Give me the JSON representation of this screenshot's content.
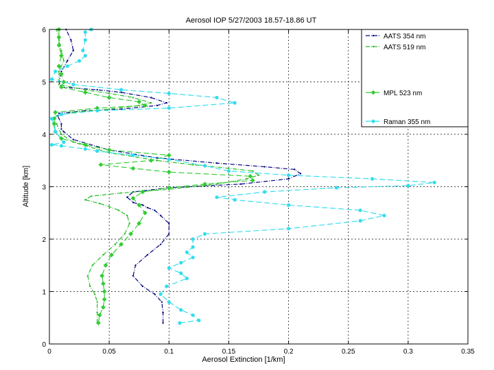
{
  "chart_data": {
    "type": "line",
    "title": "Aerosol IOP  5/27/2003 18.57-18.86  UT",
    "xlabel": "Aerosol Extinction [1/km]",
    "ylabel": "Altitude [km]",
    "xlim": [
      0,
      0.35
    ],
    "ylim": [
      0,
      6
    ],
    "xticks": [
      "0",
      "0.05",
      "0.1",
      "0.15",
      "0.2",
      "0.25",
      "0.3",
      "0.35"
    ],
    "yticks": [
      "0",
      "1",
      "2",
      "3",
      "4",
      "5",
      "6"
    ],
    "grid": true,
    "legend_position": "top-right",
    "series": [
      {
        "name": "AATS 354 nm",
        "color": "#000080",
        "style": "dashdot",
        "marker": "dot",
        "points": [
          [
            0.095,
            0.4
          ],
          [
            0.095,
            0.6
          ],
          [
            0.094,
            0.8
          ],
          [
            0.088,
            0.95
          ],
          [
            0.078,
            1.1
          ],
          [
            0.07,
            1.3
          ],
          [
            0.072,
            1.5
          ],
          [
            0.082,
            1.7
          ],
          [
            0.093,
            1.9
          ],
          [
            0.1,
            2.1
          ],
          [
            0.1,
            2.3
          ],
          [
            0.093,
            2.45
          ],
          [
            0.088,
            2.55
          ],
          [
            0.082,
            2.6
          ],
          [
            0.078,
            2.65
          ],
          [
            0.07,
            2.7
          ],
          [
            0.065,
            2.8
          ],
          [
            0.07,
            2.9
          ],
          [
            0.1,
            2.98
          ],
          [
            0.16,
            3.05
          ],
          [
            0.2,
            3.15
          ],
          [
            0.21,
            3.25
          ],
          [
            0.205,
            3.33
          ],
          [
            0.18,
            3.38
          ],
          [
            0.14,
            3.45
          ],
          [
            0.09,
            3.55
          ],
          [
            0.05,
            3.7
          ],
          [
            0.02,
            3.9
          ],
          [
            0.012,
            4.05
          ],
          [
            0.01,
            4.1
          ],
          [
            0.01,
            4.2
          ],
          [
            0.007,
            4.35
          ],
          [
            0.008,
            4.4
          ],
          [
            0.03,
            4.45
          ],
          [
            0.06,
            4.48
          ],
          [
            0.09,
            4.55
          ],
          [
            0.098,
            4.6
          ],
          [
            0.085,
            4.7
          ],
          [
            0.06,
            4.8
          ],
          [
            0.04,
            4.85
          ],
          [
            0.01,
            4.9
          ],
          [
            0.008,
            5.0
          ],
          [
            0.01,
            5.2
          ],
          [
            0.015,
            5.4
          ],
          [
            0.02,
            5.6
          ],
          [
            0.018,
            5.8
          ],
          [
            0.014,
            6.0
          ]
        ]
      },
      {
        "name": "AATS 519 nm",
        "color": "#22bb22",
        "style": "dashdot",
        "marker": "dot",
        "points": [
          [
            0.04,
            0.4
          ],
          [
            0.04,
            0.6
          ],
          [
            0.04,
            0.8
          ],
          [
            0.038,
            0.95
          ],
          [
            0.034,
            1.1
          ],
          [
            0.032,
            1.3
          ],
          [
            0.036,
            1.5
          ],
          [
            0.045,
            1.7
          ],
          [
            0.055,
            1.9
          ],
          [
            0.063,
            2.1
          ],
          [
            0.067,
            2.3
          ],
          [
            0.065,
            2.45
          ],
          [
            0.058,
            2.55
          ],
          [
            0.05,
            2.62
          ],
          [
            0.042,
            2.68
          ],
          [
            0.03,
            2.75
          ],
          [
            0.035,
            2.82
          ],
          [
            0.06,
            2.88
          ],
          [
            0.1,
            2.95
          ],
          [
            0.14,
            3.05
          ],
          [
            0.165,
            3.15
          ],
          [
            0.175,
            3.22
          ],
          [
            0.17,
            3.3
          ],
          [
            0.15,
            3.35
          ],
          [
            0.12,
            3.42
          ],
          [
            0.09,
            3.5
          ],
          [
            0.05,
            3.65
          ],
          [
            0.02,
            3.85
          ],
          [
            0.01,
            4.0
          ],
          [
            0.006,
            4.2
          ],
          [
            0.004,
            4.3
          ],
          [
            0.006,
            4.35
          ],
          [
            0.02,
            4.42
          ],
          [
            0.05,
            4.48
          ],
          [
            0.075,
            4.55
          ],
          [
            0.085,
            4.6
          ],
          [
            0.07,
            4.7
          ],
          [
            0.05,
            4.78
          ],
          [
            0.03,
            4.85
          ],
          [
            0.008,
            4.95
          ],
          [
            0.008,
            5.2
          ],
          [
            0.012,
            5.4
          ],
          [
            0.01,
            5.6
          ],
          [
            0.008,
            5.8
          ],
          [
            0.006,
            6.0
          ]
        ]
      },
      {
        "name": "MPL 523 nm",
        "color": "#33cc33",
        "style": "dashed",
        "marker": "diamond",
        "points": [
          [
            0.041,
            0.4
          ],
          [
            0.042,
            0.55
          ],
          [
            0.045,
            0.7
          ],
          [
            0.046,
            0.85
          ],
          [
            0.046,
            1.0
          ],
          [
            0.045,
            1.15
          ],
          [
            0.044,
            1.3
          ],
          [
            0.047,
            1.5
          ],
          [
            0.052,
            1.7
          ],
          [
            0.06,
            1.9
          ],
          [
            0.068,
            2.1
          ],
          [
            0.075,
            2.3
          ],
          [
            0.08,
            2.5
          ],
          [
            0.075,
            2.65
          ],
          [
            0.07,
            2.78
          ],
          [
            0.078,
            2.9
          ],
          [
            0.1,
            2.98
          ],
          [
            0.13,
            3.05
          ],
          [
            0.17,
            3.12
          ],
          [
            0.168,
            3.2
          ],
          [
            0.1,
            3.28
          ],
          [
            0.07,
            3.35
          ],
          [
            0.043,
            3.42
          ],
          [
            0.085,
            3.5
          ],
          [
            0.1,
            3.6
          ],
          [
            0.05,
            3.7
          ],
          [
            0.03,
            3.8
          ],
          [
            0.01,
            3.92
          ],
          [
            0.005,
            4.05
          ],
          [
            0.004,
            4.2
          ],
          [
            0.004,
            4.3
          ],
          [
            0.005,
            4.42
          ],
          [
            0.04,
            4.5
          ],
          [
            0.08,
            4.55
          ],
          [
            0.075,
            4.62
          ],
          [
            0.05,
            4.7
          ],
          [
            0.03,
            4.8
          ],
          [
            0.01,
            4.9
          ],
          [
            0.012,
            5.0
          ],
          [
            0.01,
            5.15
          ],
          [
            0.008,
            5.3
          ],
          [
            0.01,
            5.5
          ],
          [
            0.008,
            5.7
          ],
          [
            0.008,
            5.85
          ],
          [
            0.008,
            6.0
          ]
        ]
      },
      {
        "name": "Raman 355 nm",
        "color": "#33ddee",
        "style": "dashed",
        "marker": "circle",
        "points": [
          [
            0.109,
            0.4
          ],
          [
            0.125,
            0.45
          ],
          [
            0.12,
            0.55
          ],
          [
            0.11,
            0.65
          ],
          [
            0.1,
            0.8
          ],
          [
            0.093,
            0.95
          ],
          [
            0.098,
            1.1
          ],
          [
            0.115,
            1.25
          ],
          [
            0.11,
            1.35
          ],
          [
            0.1,
            1.45
          ],
          [
            0.11,
            1.55
          ],
          [
            0.12,
            1.65
          ],
          [
            0.115,
            1.75
          ],
          [
            0.12,
            1.85
          ],
          [
            0.12,
            2.0
          ],
          [
            0.13,
            2.1
          ],
          [
            0.2,
            2.2
          ],
          [
            0.26,
            2.35
          ],
          [
            0.28,
            2.45
          ],
          [
            0.26,
            2.55
          ],
          [
            0.2,
            2.65
          ],
          [
            0.155,
            2.75
          ],
          [
            0.14,
            2.8
          ],
          [
            0.18,
            2.9
          ],
          [
            0.24,
            2.98
          ],
          [
            0.3,
            3.02
          ],
          [
            0.322,
            3.08
          ],
          [
            0.27,
            3.15
          ],
          [
            0.2,
            3.22
          ],
          [
            0.15,
            3.3
          ],
          [
            0.13,
            3.4
          ],
          [
            0.1,
            3.52
          ],
          [
            0.07,
            3.6
          ],
          [
            0.04,
            3.68
          ],
          [
            0.03,
            3.72
          ],
          [
            0.01,
            3.78
          ],
          [
            0.002,
            3.8
          ],
          [
            0.012,
            3.85
          ],
          [
            0.005,
            4.05
          ],
          [
            0.002,
            4.3
          ],
          [
            0.01,
            4.38
          ],
          [
            0.04,
            4.45
          ],
          [
            0.1,
            4.5
          ],
          [
            0.155,
            4.6
          ],
          [
            0.14,
            4.7
          ],
          [
            0.1,
            4.78
          ],
          [
            0.06,
            4.85
          ],
          [
            0.02,
            4.95
          ],
          [
            0.002,
            5.05
          ],
          [
            0.005,
            5.2
          ],
          [
            0.015,
            5.3
          ],
          [
            0.025,
            5.4
          ],
          [
            0.03,
            5.5
          ],
          [
            0.028,
            5.6
          ],
          [
            0.03,
            5.8
          ],
          [
            0.03,
            5.95
          ],
          [
            0.035,
            6.0
          ]
        ]
      }
    ]
  }
}
